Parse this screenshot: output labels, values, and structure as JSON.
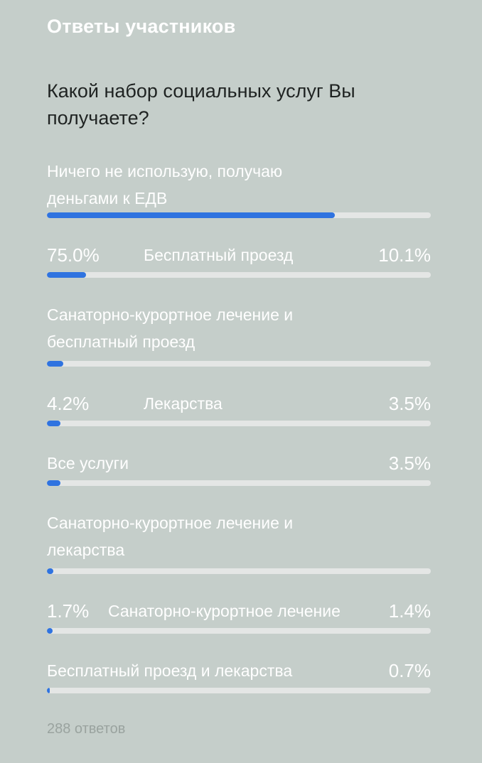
{
  "heading": "Ответы участников",
  "question": "Какой набор социальных услуг Вы получаете?",
  "options": [
    {
      "label": "Ничего не использую, получаю деньгами к ЕДВ",
      "percent_text": "75.0%",
      "percent": 75.0
    },
    {
      "label": "Бесплатный проезд",
      "percent_text": "10.1%",
      "percent": 10.1
    },
    {
      "label": "Санаторно-курортное лечение и бесплатный проезд",
      "percent_text": "4.2%",
      "percent": 4.2
    },
    {
      "label": "Лекарства",
      "percent_text": "3.5%",
      "percent": 3.5
    },
    {
      "label": "Все услуги",
      "percent_text": "3.5%",
      "percent": 3.5
    },
    {
      "label": "Санаторно-курортное лечение и лекарства",
      "percent_text": "1.7%",
      "percent": 1.7
    },
    {
      "label": "Санаторно-курортное лечение",
      "percent_text": "1.4%",
      "percent": 1.4
    },
    {
      "label": "Бесплатный проезд и лекарства",
      "percent_text": "0.7%",
      "percent": 0.7
    }
  ],
  "footer": "288 ответов",
  "colors": {
    "background": "#c5ceca",
    "bar_fill": "#2f73e0",
    "bar_track": "#e4e6e5"
  }
}
